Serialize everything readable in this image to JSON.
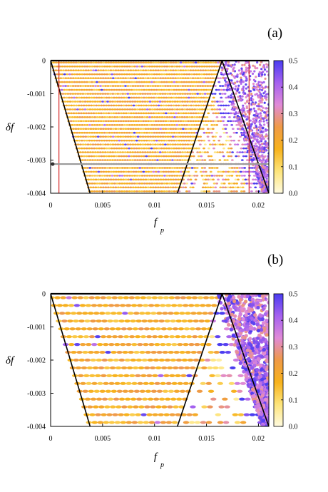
{
  "colors": {
    "background": "#ffffff",
    "boundary_line": "#000000",
    "marker_line_red": "#d62a2a",
    "marker_line_grey": "#9a9a9a",
    "colorscale": [
      "#fffbe0",
      "#fde47a",
      "#f7b21c",
      "#ef9a47",
      "#e08ad8",
      "#a561ef",
      "#4a3cf0"
    ]
  },
  "chart_data": [
    {
      "panel_label": "(a)",
      "type": "heatmap",
      "xlabel": "f",
      "xlabel_subscript": "p",
      "ylabel": "δf",
      "xlim": [
        0,
        0.021
      ],
      "ylim": [
        -0.004,
        0
      ],
      "x_ticks": [
        0,
        0.005,
        0.01,
        0.015,
        0.02
      ],
      "x_tick_labels": [
        "0",
        "0.005",
        "0.01",
        "0.015",
        "0.02"
      ],
      "y_ticks": [
        0,
        -0.001,
        -0.002,
        -0.003,
        -0.004
      ],
      "y_tick_labels": [
        "0",
        "-0.001",
        "-0.002",
        "-0.003",
        "-0.004"
      ],
      "colorbar": {
        "range": [
          0,
          0.5
        ],
        "ticks": [
          0,
          0.1,
          0.2,
          0.3,
          0.4,
          0.5
        ],
        "tick_labels": [
          "0.0",
          "0.1",
          "0.2",
          "0.3",
          "0.4",
          "0.5"
        ]
      },
      "boundary_lines": [
        {
          "x": [
            0,
            0.0038
          ],
          "y": [
            0,
            -0.004
          ]
        },
        {
          "x": [
            0.0122,
            0.0165
          ],
          "y": [
            -0.004,
            0
          ]
        },
        {
          "x": [
            0.0165,
            0.021
          ],
          "y": [
            0,
            -0.004
          ]
        }
      ],
      "marker_lines": [
        {
          "orientation": "vertical",
          "x": 0.0008,
          "color": "red"
        },
        {
          "orientation": "vertical",
          "x": 0.0191,
          "color": "red"
        },
        {
          "orientation": "horizontal",
          "y": -0.00312,
          "color": "grey",
          "end_marker_x": 0.0002
        }
      ],
      "stripe_count": 34,
      "stripe_style": "dots"
    },
    {
      "panel_label": "(b)",
      "type": "heatmap",
      "xlabel": "f",
      "xlabel_subscript": "p",
      "ylabel": "δf",
      "xlim": [
        0,
        0.021
      ],
      "ylim": [
        -0.004,
        0
      ],
      "x_ticks": [
        0,
        0.005,
        0.01,
        0.015,
        0.02
      ],
      "x_tick_labels": [
        "0",
        "0.005",
        "0.01",
        "0.015",
        "0.02"
      ],
      "y_ticks": [
        0,
        -0.001,
        -0.002,
        -0.003,
        -0.004
      ],
      "y_tick_labels": [
        "0",
        "-0.001",
        "-0.002",
        "-0.003",
        "-0.004"
      ],
      "colorbar": {
        "range": [
          0,
          0.5
        ],
        "ticks": [
          0,
          0.1,
          0.2,
          0.3,
          0.4,
          0.5
        ],
        "tick_labels": [
          "0.0",
          "0.1",
          "0.2",
          "0.3",
          "0.4",
          "0.5"
        ]
      },
      "boundary_lines": [
        {
          "x": [
            0,
            0.0038
          ],
          "y": [
            0,
            -0.004
          ]
        },
        {
          "x": [
            0.0122,
            0.0165
          ],
          "y": [
            -0.004,
            0
          ]
        },
        {
          "x": [
            0.0165,
            0.021
          ],
          "y": [
            0,
            -0.004
          ]
        }
      ],
      "marker_lines": [],
      "stripe_count": 17,
      "stripe_style": "dashes"
    }
  ]
}
